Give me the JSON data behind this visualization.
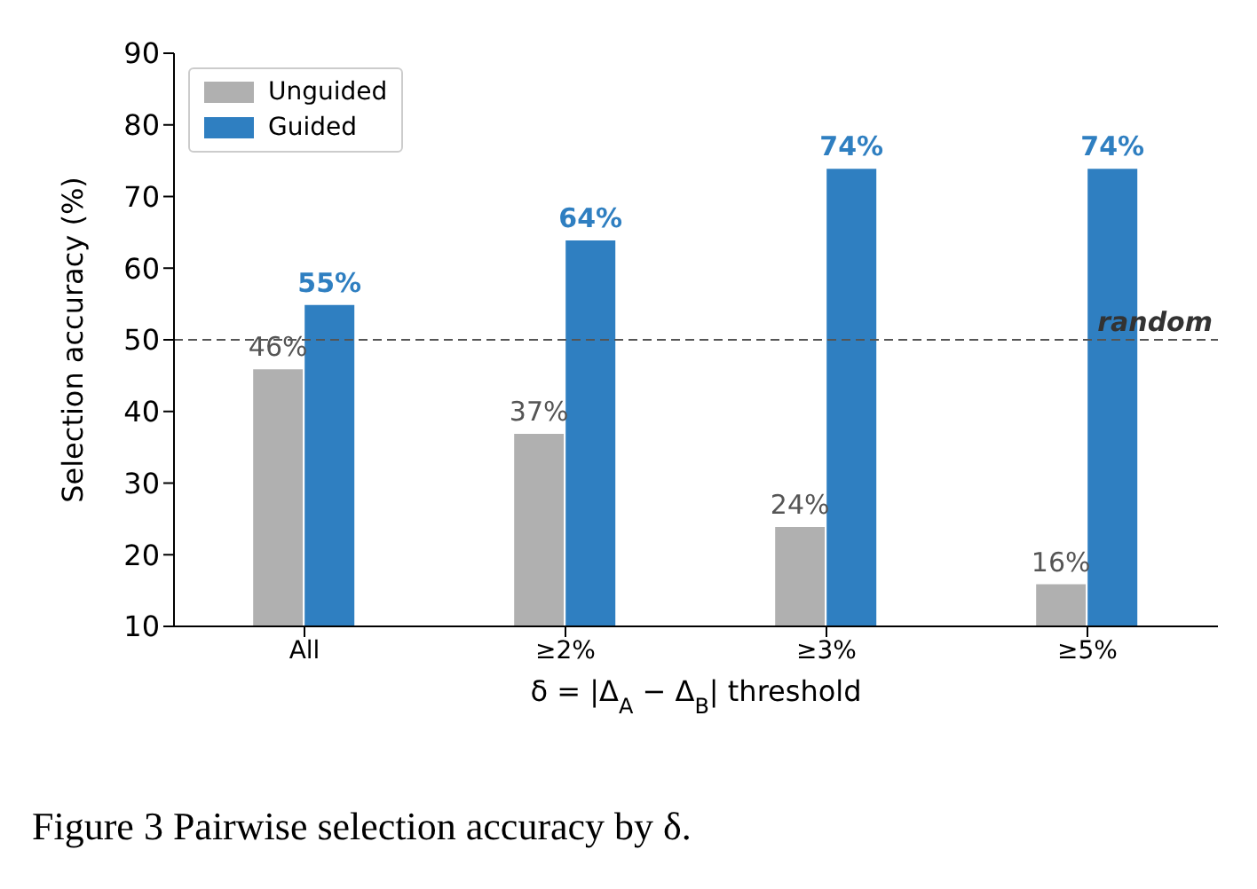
{
  "chart_data": {
    "type": "bar",
    "ylabel": "Selection accuracy (%)",
    "xlabel": "δ = |Δ$_{A}$ − Δ$_{B}$| threshold",
    "categories": [
      "All",
      "≥2%",
      "≥3%",
      "≥5%"
    ],
    "series": [
      {
        "name": "Unguided",
        "color": "#b0b0b0",
        "values": [
          46,
          37,
          24,
          16
        ],
        "value_labels": [
          "46%",
          "37%",
          "24%",
          "16%"
        ]
      },
      {
        "name": "Guided",
        "color": "#2f7fc1",
        "values": [
          55,
          64,
          74,
          74
        ],
        "value_labels": [
          "55%",
          "64%",
          "74%",
          "74%"
        ]
      }
    ],
    "ylim": [
      10,
      90
    ],
    "yticks": [
      10,
      20,
      30,
      40,
      50,
      60,
      70,
      80,
      90
    ],
    "ref_lines": [
      {
        "axis": "y",
        "value": 50,
        "label": "random",
        "color": "#555555",
        "line_style": "dashed"
      }
    ],
    "legend": "top left",
    "grid": false,
    "annotations": [
      "Figure 3  Pairwise selection accuracy by δ."
    ]
  }
}
